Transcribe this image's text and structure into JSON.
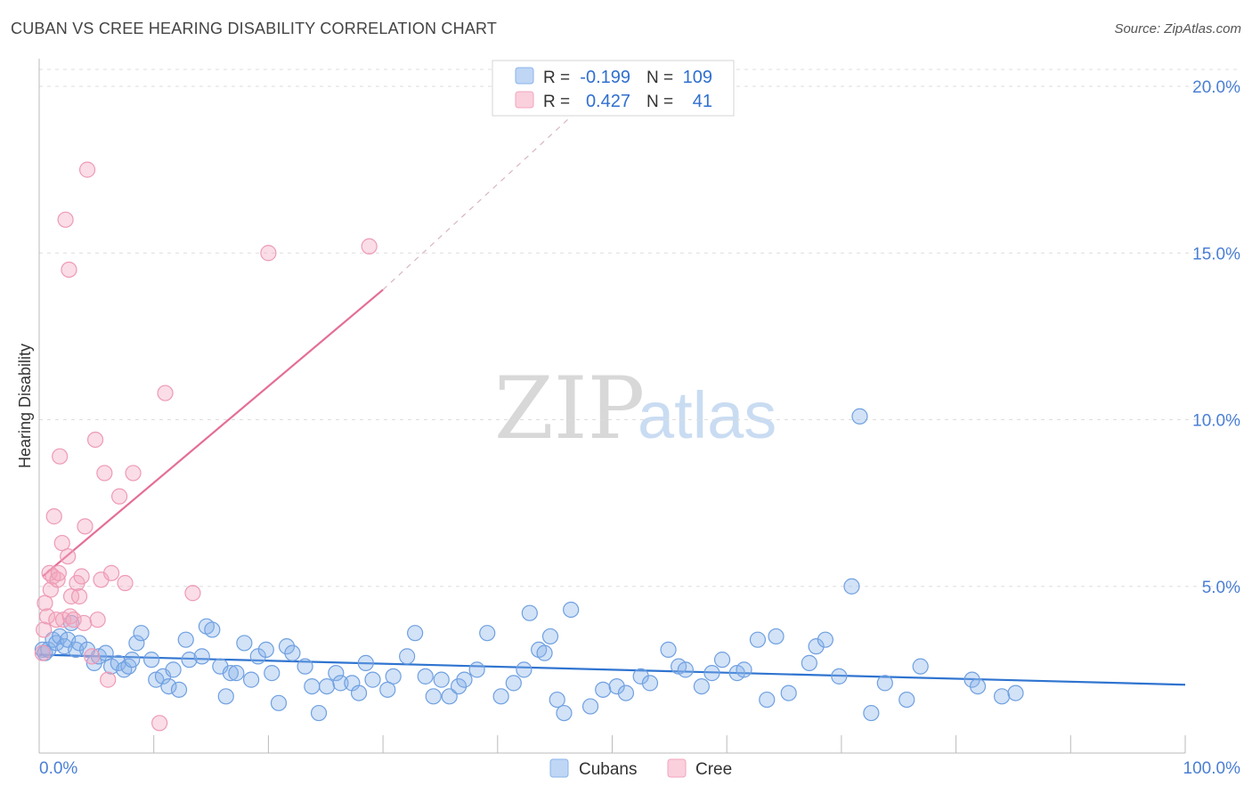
{
  "chart_data": {
    "type": "scatter",
    "title": "CUBAN VS CREE HEARING DISABILITY CORRELATION CHART",
    "source": "Source: ZipAtlas.com",
    "xlabel": "",
    "ylabel": "Hearing Disability",
    "xlim": [
      0,
      100
    ],
    "ylim": [
      0,
      20
    ],
    "x_tick_labels": [
      "0.0%",
      "100.0%"
    ],
    "y_tick_labels": [
      "5.0%",
      "10.0%",
      "15.0%",
      "20.0%"
    ],
    "y_ticks": [
      5,
      10,
      15,
      20
    ],
    "grid": true,
    "watermark": "ZIPatlas",
    "stats": [
      {
        "r_label": "R =",
        "r": "-0.199",
        "n_label": "N =",
        "n": "109",
        "color": "#8ab4ea"
      },
      {
        "r_label": "R =",
        "r": "0.427",
        "n_label": "N =",
        "n": "41",
        "color": "#f2a5bd"
      }
    ],
    "series": [
      {
        "name": "Cubans",
        "color": "#8ab4ea",
        "line_color": "#2f74d0",
        "trend": {
          "x": [
            0,
            100
          ],
          "y": [
            2.95,
            2.05
          ],
          "dashed_to": null
        },
        "x": [
          0.3,
          0.5,
          0.8,
          1.2,
          1.5,
          1.8,
          2.2,
          2.5,
          2.8,
          3.2,
          3.5,
          4.2,
          4.8,
          5.2,
          5.8,
          6.3,
          6.9,
          7.4,
          7.8,
          8.1,
          8.5,
          8.9,
          9.8,
          10.2,
          10.8,
          11.3,
          11.7,
          12.2,
          12.8,
          13.1,
          14.2,
          14.6,
          15.1,
          15.8,
          16.3,
          16.7,
          17.2,
          17.9,
          18.5,
          19.1,
          19.8,
          20.3,
          20.9,
          21.6,
          22.1,
          23.2,
          23.8,
          24.4,
          25.1,
          25.9,
          26.3,
          27.3,
          27.9,
          28.5,
          29.1,
          30.4,
          30.9,
          32.1,
          32.8,
          33.7,
          34.4,
          35.1,
          35.8,
          36.6,
          37.1,
          38.2,
          39.1,
          40.3,
          41.4,
          42.3,
          42.8,
          43.6,
          44.1,
          44.6,
          45.2,
          45.8,
          46.4,
          48.1,
          49.2,
          50.4,
          51.2,
          52.5,
          53.3,
          54.9,
          55.8,
          56.4,
          57.8,
          58.7,
          59.6,
          60.9,
          61.5,
          62.7,
          63.5,
          64.3,
          65.4,
          67.2,
          67.8,
          68.6,
          69.8,
          70.9,
          71.6,
          72.6,
          73.8,
          75.7,
          76.9,
          81.4,
          81.9,
          84.0,
          85.2
        ],
        "y": [
          3.1,
          3.0,
          3.1,
          3.4,
          3.3,
          3.5,
          3.2,
          3.4,
          3.9,
          3.1,
          3.3,
          3.1,
          2.7,
          2.9,
          3.0,
          2.6,
          2.7,
          2.5,
          2.6,
          2.8,
          3.3,
          3.6,
          2.8,
          2.2,
          2.3,
          2.0,
          2.5,
          1.9,
          3.4,
          2.8,
          2.9,
          3.8,
          3.7,
          2.6,
          1.7,
          2.4,
          2.4,
          3.3,
          2.2,
          2.9,
          3.1,
          2.4,
          1.5,
          3.2,
          3.0,
          2.6,
          2.0,
          1.2,
          2.0,
          2.4,
          2.1,
          2.1,
          1.8,
          2.7,
          2.2,
          1.9,
          2.3,
          2.9,
          3.6,
          2.3,
          1.7,
          2.2,
          1.7,
          2.0,
          2.2,
          2.5,
          3.6,
          1.7,
          2.1,
          2.5,
          4.2,
          3.1,
          3.0,
          3.5,
          1.6,
          1.2,
          4.3,
          1.4,
          1.9,
          2.0,
          1.8,
          2.3,
          2.1,
          3.1,
          2.6,
          2.5,
          2.0,
          2.4,
          2.8,
          2.4,
          2.5,
          3.4,
          1.6,
          3.5,
          1.8,
          2.7,
          3.2,
          3.4,
          2.3,
          5.0,
          10.1,
          1.2,
          2.1,
          1.6,
          2.6,
          2.2,
          2.0,
          1.7,
          1.8
        ],
        "note": "values read approximately from the plotted markers"
      },
      {
        "name": "Cree",
        "color": "#f2a5bd",
        "line_color": "#e46e97",
        "trend": {
          "x": [
            0.3,
            30.0
          ],
          "y": [
            5.3,
            13.9
          ],
          "dashed_to": [
            48.0,
            19.6
          ]
        },
        "x": [
          0.3,
          0.4,
          0.5,
          0.7,
          0.9,
          1.0,
          1.2,
          1.3,
          1.5,
          1.6,
          1.7,
          1.8,
          2.0,
          2.1,
          2.3,
          2.5,
          2.6,
          2.7,
          2.8,
          3.0,
          3.3,
          3.5,
          3.7,
          3.9,
          4.0,
          4.2,
          4.6,
          4.9,
          5.1,
          5.4,
          5.7,
          6.0,
          6.3,
          7.0,
          7.5,
          8.2,
          10.5,
          11.0,
          13.4,
          20.0,
          28.8
        ],
        "y": [
          3.0,
          3.7,
          4.5,
          4.1,
          5.4,
          4.9,
          5.3,
          7.1,
          4.0,
          5.2,
          5.4,
          8.9,
          6.3,
          4.0,
          16.0,
          5.9,
          14.5,
          4.1,
          4.7,
          4.0,
          5.1,
          4.7,
          5.3,
          3.9,
          6.8,
          17.5,
          2.9,
          9.4,
          4.0,
          5.2,
          8.4,
          2.2,
          5.4,
          7.7,
          5.1,
          8.4,
          0.9,
          10.8,
          4.8,
          15.0,
          15.2
        ],
        "note": "values read approximately from the plotted markers"
      }
    ]
  }
}
